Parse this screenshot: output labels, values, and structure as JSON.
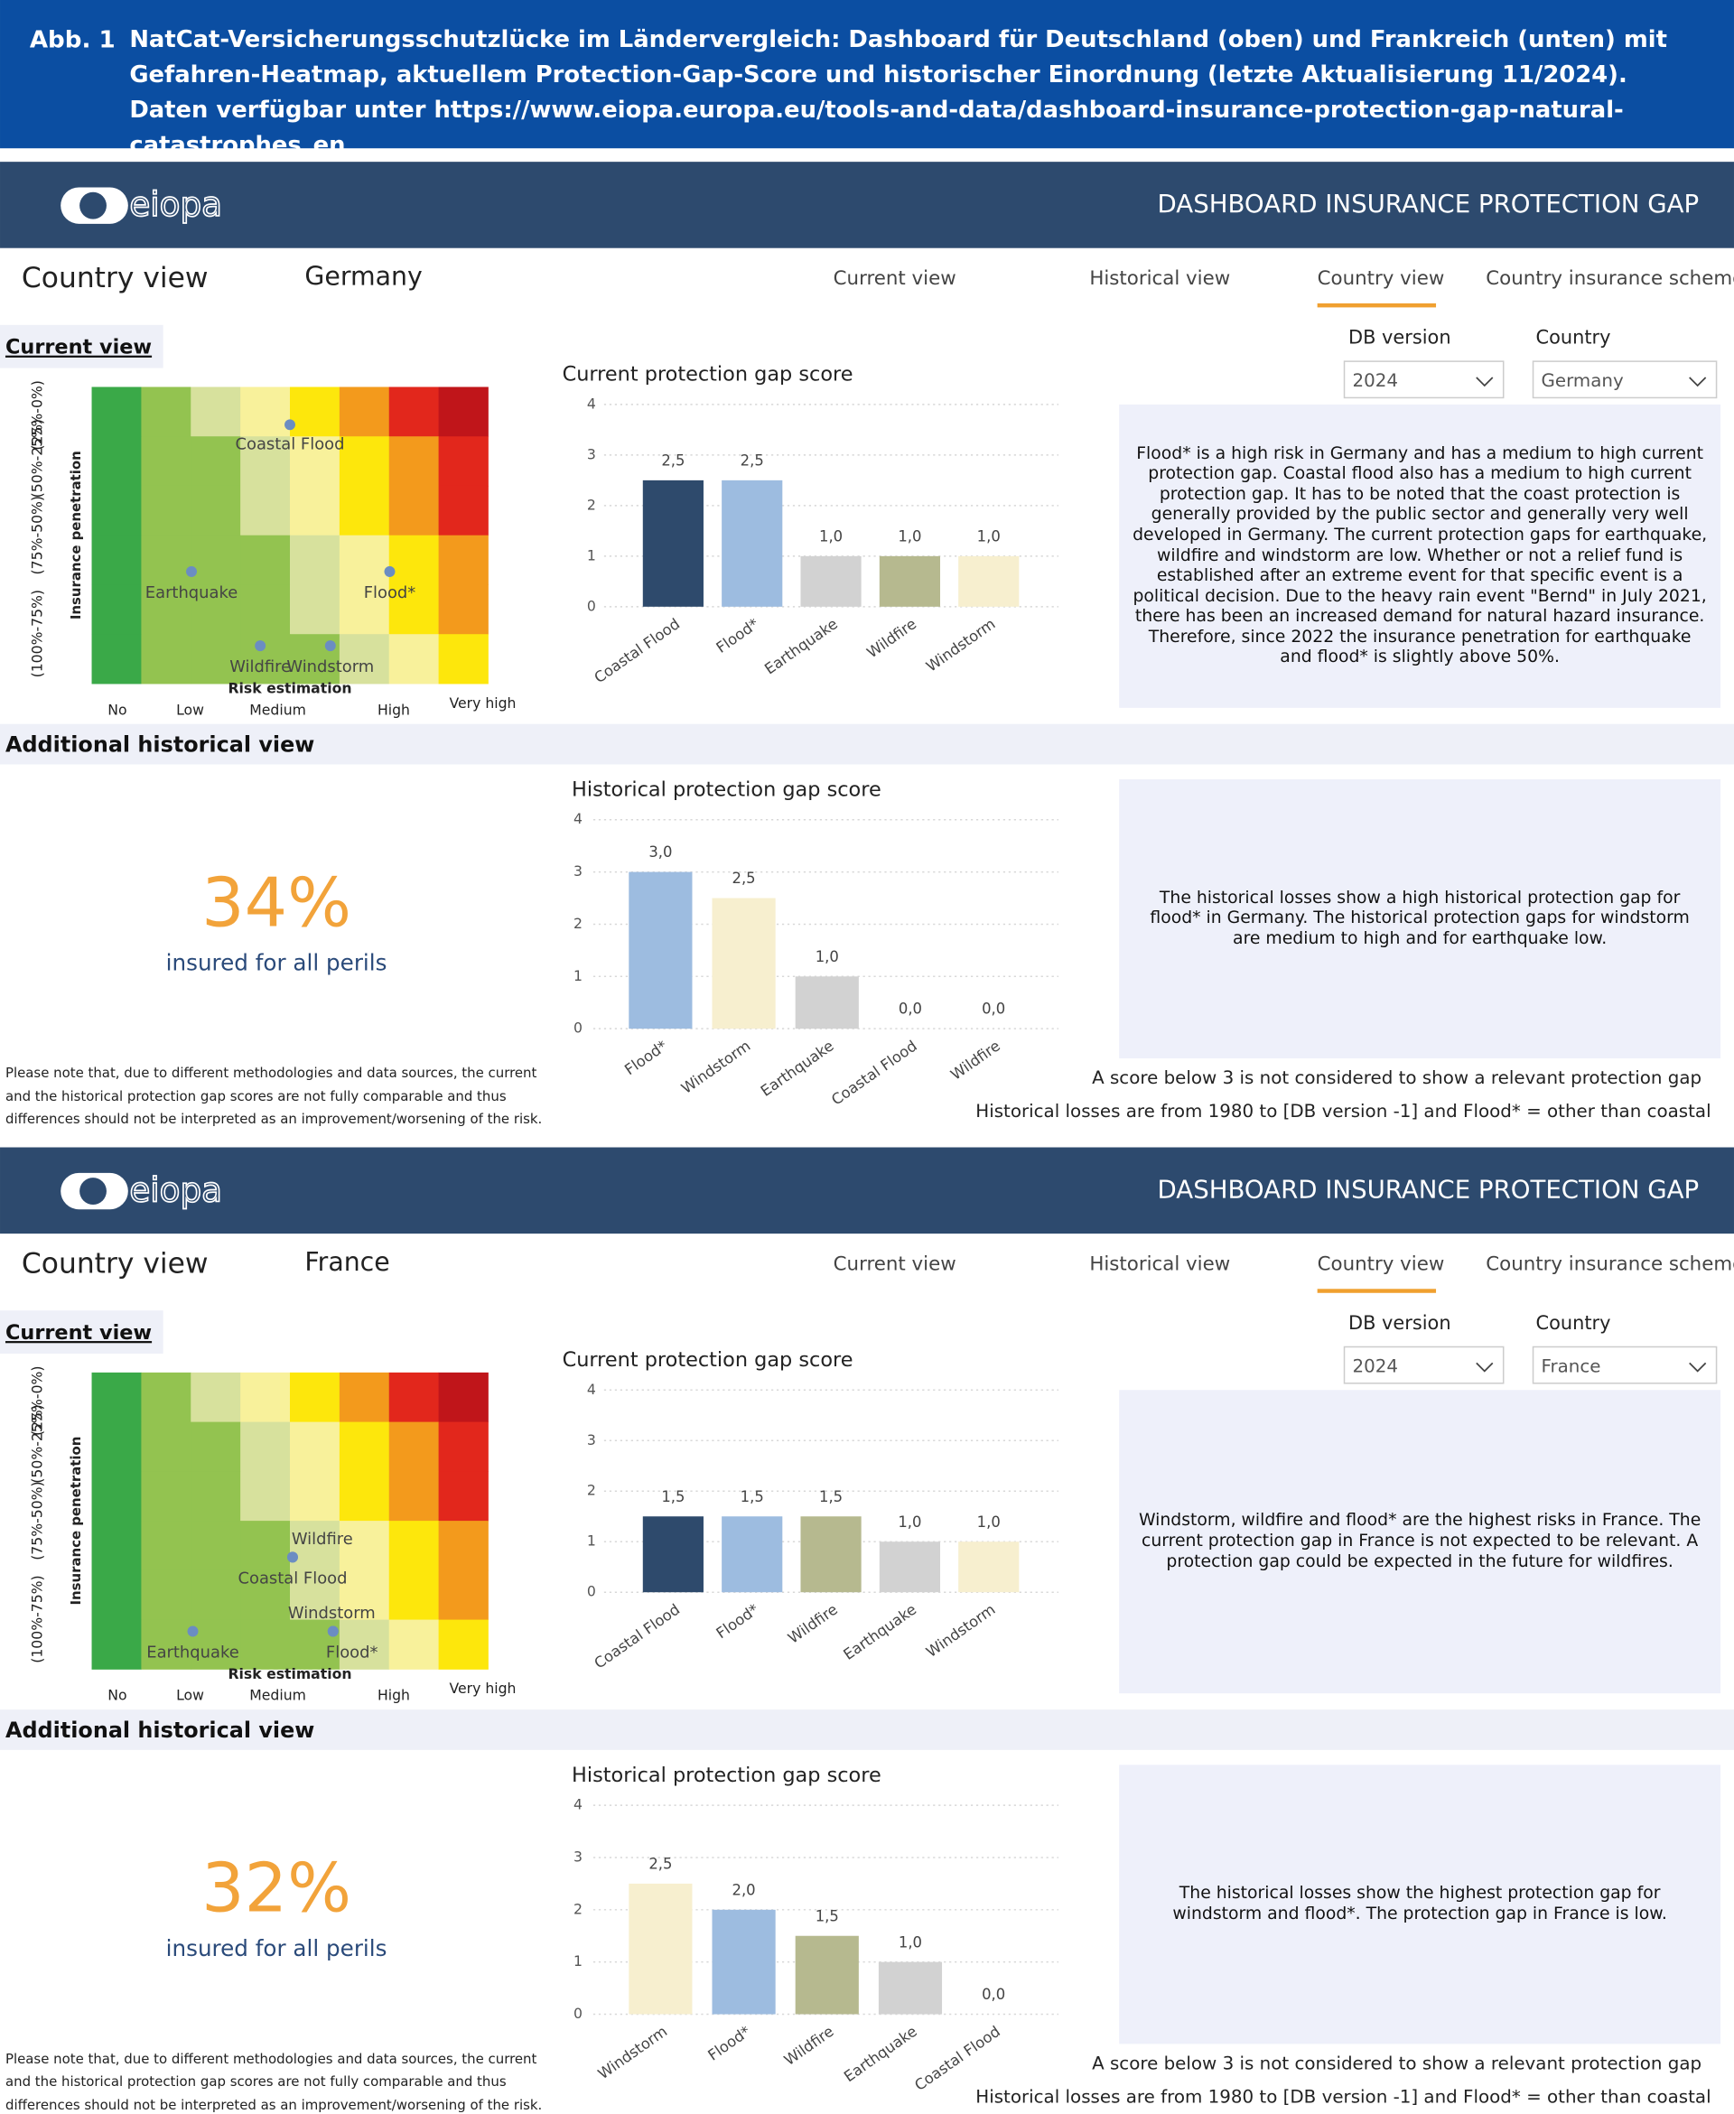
{
  "caption": {
    "label": "Abb. 1",
    "text": "NatCat-Versicherungsschutzlücke im Ländervergleich: Dashboard für Deutschland (oben) und Frankreich (unten) mit Gefahren-Heatmap, aktuellem Protection-Gap-Score und historischer Einordnung (letzte Aktualisierung 11/2024). Daten verfügbar unter https://www.eiopa.europa.eu/tools-and-data/dashboard-insurance-protection-gap-natural-catastrophes_en"
  },
  "dashboards": [
    {
      "logo": "eiopa",
      "header_title": "DASHBOARD INSURANCE PROTECTION GAP",
      "page_title": "Country view",
      "country": "Germany",
      "nav": [
        "Current view",
        "Historical view",
        "Country view",
        "Country insurance scheme"
      ],
      "current_view_label": "Current view",
      "filters": [
        {
          "label": "DB version",
          "value": "2024"
        },
        {
          "label": "Country",
          "value": "Germany"
        }
      ],
      "heatmap": {
        "y_label": "Insurance penetration",
        "y_categories": [
          "(100%-75%)",
          "(75%-50%)",
          "(50%-25%)",
          "(25%-0%)"
        ],
        "x_label": "Risk estimation",
        "x_categories": [
          "No",
          "Low",
          "Medium",
          "High",
          "Very high"
        ],
        "points": [
          "Coastal Flood",
          "Earthquake",
          "Flood*",
          "Wildfire",
          "Windstorm"
        ]
      },
      "current_chart": {
        "type": "bar",
        "title": "Current protection gap score",
        "categories": [
          "Coastal Flood",
          "Flood*",
          "Earthquake",
          "Wildfire",
          "Windstorm"
        ],
        "values": [
          2.5,
          2.5,
          1.0,
          1.0,
          1.0
        ],
        "value_labels": [
          "2,5",
          "2,5",
          "1,0",
          "1,0",
          "1,0"
        ],
        "colors": [
          "#2e4a6c",
          "#9dbce0",
          "#d2d2d2",
          "#b6b98f",
          "#f7efcf"
        ],
        "ylim": [
          0,
          4
        ],
        "yticks": [
          0,
          1,
          2,
          3,
          4
        ],
        "grid": true
      },
      "current_text": "Flood* is a high risk in Germany and has a medium to high current protection gap. Coastal flood also has a medium to high current protection gap. It has to be noted that the coast protection is generally provided by the public sector and generally very well developed in Germany. The current protection gaps for earthquake, wildfire and windstorm are low. Whether or not a relief fund is established after an extreme event for that specific event is a political decision. Due to the heavy rain event \"Bernd\" in July 2021, there has been an increased demand for natural hazard insurance. Therefore, since 2022 the insurance penetration for earthquake and flood* is slightly above 50%.",
      "additional_label": "Additional historical view",
      "insured_share": "34%",
      "insured_caption": "insured for all perils",
      "note": "Please note that, due to different methodologies and data sources, the current and the historical protection gap scores are not fully comparable and thus differences should not be interpreted as an improvement/worsening of the risk.",
      "historical_chart": {
        "type": "bar",
        "title": "Historical protection gap score",
        "categories": [
          "Flood*",
          "Windstorm",
          "Earthquake",
          "Coastal Flood",
          "Wildfire"
        ],
        "values": [
          3.0,
          2.5,
          1.0,
          0.0,
          0.0
        ],
        "value_labels": [
          "3,0",
          "2,5",
          "1,0",
          "0,0",
          "0,0"
        ],
        "colors": [
          "#9dbce0",
          "#f7efcf",
          "#d2d2d2",
          "#2e4a6c",
          "#b6b98f"
        ],
        "ylim": [
          0,
          4
        ],
        "yticks": [
          0,
          1,
          2,
          3,
          4
        ],
        "grid": true
      },
      "historical_text": "The historical losses show a high historical protection gap for flood* in Germany. The historical protection gaps for windstorm are medium to high and for earthquake low.",
      "footnotes": [
        "A score below 3 is not considered to show a relevant protection gap",
        "Historical losses are from 1980 to [DB version -1] and Flood* = other than coastal"
      ]
    },
    {
      "logo": "eiopa",
      "header_title": "DASHBOARD INSURANCE PROTECTION GAP",
      "page_title": "Country view",
      "country": "France",
      "nav": [
        "Current view",
        "Historical view",
        "Country view",
        "Country insurance scheme"
      ],
      "current_view_label": "Current view",
      "filters": [
        {
          "label": "DB version",
          "value": "2024"
        },
        {
          "label": "Country",
          "value": "France"
        }
      ],
      "heatmap": {
        "y_label": "Insurance penetration",
        "y_categories": [
          "(100%-75%)",
          "(75%-50%)",
          "(50%-25%)",
          "(25%-0%)"
        ],
        "x_label": "Risk estimation",
        "x_categories": [
          "No",
          "Low",
          "Medium",
          "High",
          "Very high"
        ],
        "points": [
          "Wildfire",
          "Coastal Flood",
          "Windstorm",
          "Flood*",
          "Earthquake"
        ]
      },
      "current_chart": {
        "type": "bar",
        "title": "Current protection gap score",
        "categories": [
          "Coastal Flood",
          "Flood*",
          "Wildfire",
          "Earthquake",
          "Windstorm"
        ],
        "values": [
          1.5,
          1.5,
          1.5,
          1.0,
          1.0
        ],
        "value_labels": [
          "1,5",
          "1,5",
          "1,5",
          "1,0",
          "1,0"
        ],
        "colors": [
          "#2e4a6c",
          "#9dbce0",
          "#b6b98f",
          "#d2d2d2",
          "#f7efcf"
        ],
        "ylim": [
          0,
          4
        ],
        "yticks": [
          0,
          1,
          2,
          3,
          4
        ],
        "grid": true
      },
      "current_text": "Windstorm, wildfire and flood* are the highest risks in France. The current protection gap in France is not expected to be relevant. A protection gap could be expected in the future for wildfires.",
      "additional_label": "Additional historical view",
      "insured_share": "32%",
      "insured_caption": "insured for all perils",
      "note": "Please note that, due to different methodologies and data sources, the current and the historical protection gap scores are not fully comparable and thus differences should not be interpreted as an improvement/worsening of the risk.",
      "historical_chart": {
        "type": "bar",
        "title": "Historical protection gap score",
        "categories": [
          "Windstorm",
          "Flood*",
          "Wildfire",
          "Earthquake",
          "Coastal Flood"
        ],
        "values": [
          2.5,
          2.0,
          1.5,
          1.0,
          0.0
        ],
        "value_labels": [
          "2,5",
          "2,0",
          "1,5",
          "1,0",
          "0,0"
        ],
        "colors": [
          "#f7efcf",
          "#9dbce0",
          "#b6b98f",
          "#d2d2d2",
          "#2e4a6c"
        ],
        "ylim": [
          0,
          4
        ],
        "yticks": [
          0,
          1,
          2,
          3,
          4
        ],
        "grid": true
      },
      "historical_text": "The historical losses show the highest protection gap for windstorm and flood*. The protection gap in France is low.",
      "footnotes": [
        "A score below 3 is not considered to show a relevant protection gap",
        "Historical losses are from 1980 to [DB version -1] and Flood* = other than coastal"
      ]
    }
  ]
}
